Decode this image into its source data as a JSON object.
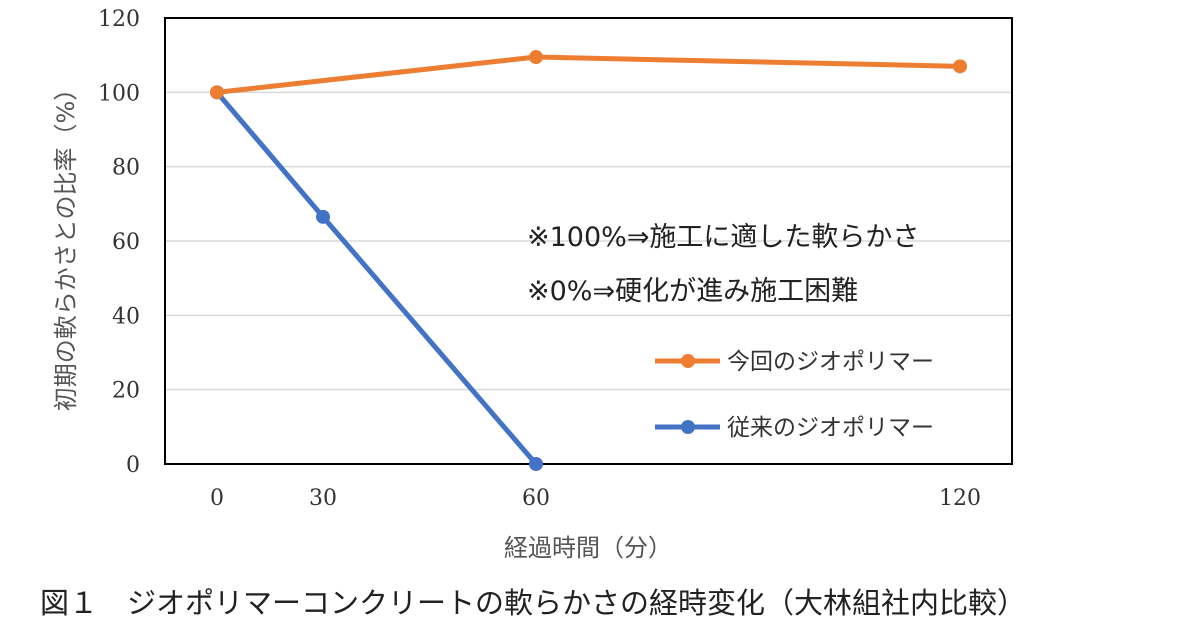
{
  "chart_data": {
    "type": "line",
    "x": [
      0,
      30,
      60,
      120
    ],
    "series": [
      {
        "name": "今回のジオポリマー",
        "color": "#ED7D31",
        "points": [
          [
            0,
            100
          ],
          [
            60,
            109.5
          ],
          [
            120,
            107
          ]
        ]
      },
      {
        "name": "従来のジオポリマー",
        "color": "#4472C4",
        "points": [
          [
            0,
            100
          ],
          [
            30,
            66.5
          ],
          [
            60,
            0
          ]
        ]
      }
    ],
    "xticks": [
      0,
      30,
      60,
      120
    ],
    "xtick_labels": [
      "0",
      "30",
      "60",
      "120"
    ],
    "yticks": [
      0,
      20,
      40,
      60,
      80,
      100,
      120
    ],
    "ytick_labels": [
      "0",
      "20",
      "40",
      "60",
      "80",
      "100",
      "120"
    ],
    "ylim": [
      0,
      120
    ],
    "xlabel": "経過時間（分）",
    "ylabel": "初期の軟らかさとの比率（%）",
    "grid": "horizontal",
    "legend_position": "bottom-right",
    "annotations": [
      "※100%⇒施工に適した軟らかさ",
      "※0%⇒硬化が進み施工困難"
    ],
    "caption": "図１　ジオポリマーコンクリートの軟らかさの経時変化（大林組社内比較）"
  }
}
